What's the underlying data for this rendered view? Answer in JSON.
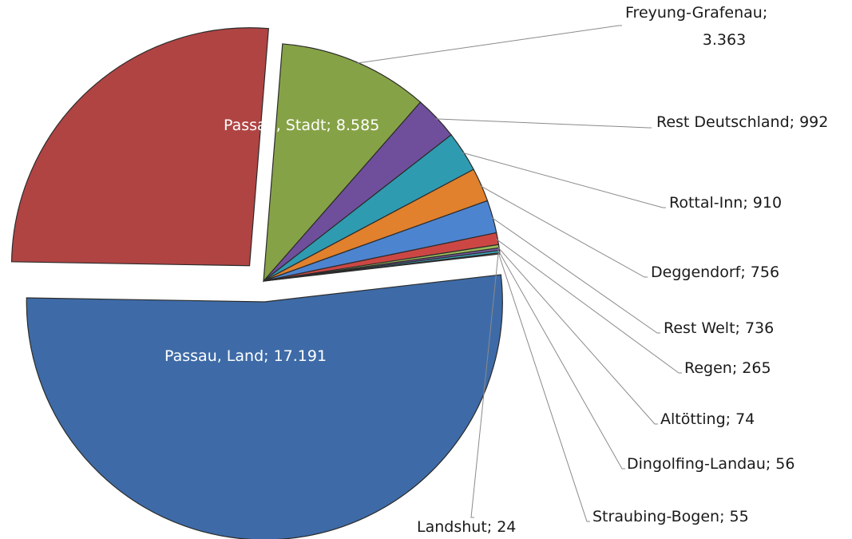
{
  "chart_data": {
    "type": "pie",
    "title": "",
    "slices": [
      {
        "label": "Passau, Land",
        "value": 17191,
        "display": "Passau, Land; 17.191",
        "color": "#3e6ba7",
        "exploded": true,
        "label_inside": true
      },
      {
        "label": "Passau, Stadt",
        "value": 8585,
        "display": "Passau, Stadt; 8.585",
        "color": "#b04443",
        "exploded": true,
        "label_inside": true
      },
      {
        "label": "Freyung-Grafenau",
        "value": 3363,
        "display": [
          "Freyung-Grafenau;",
          "3.363"
        ],
        "color": "#86a246",
        "exploded": false,
        "label_inside": false
      },
      {
        "label": "Rest Deutschland",
        "value": 992,
        "display": "Rest Deutschland; 992",
        "color": "#6f4f9b",
        "exploded": false,
        "label_inside": false
      },
      {
        "label": "Rottal-Inn",
        "value": 910,
        "display": "Rottal-Inn; 910",
        "color": "#2f9bb1",
        "exploded": false,
        "label_inside": false
      },
      {
        "label": "Deggendorf",
        "value": 756,
        "display": "Deggendorf; 756",
        "color": "#e1802d",
        "exploded": false,
        "label_inside": false
      },
      {
        "label": "Rest Welt",
        "value": 736,
        "display": "Rest Welt; 736",
        "color": "#4d84d0",
        "exploded": false,
        "label_inside": false
      },
      {
        "label": "Regen",
        "value": 265,
        "display": "Regen; 265",
        "color": "#cc4744",
        "exploded": false,
        "label_inside": false
      },
      {
        "label": "Altötting",
        "value": 74,
        "display": "Altötting; 74",
        "color": "#9bbb59",
        "exploded": false,
        "label_inside": false
      },
      {
        "label": "Dingolfing-Landau",
        "value": 56,
        "display": "Dingolfing-Landau; 56",
        "color": "#7b5aa6",
        "exploded": false,
        "label_inside": false
      },
      {
        "label": "Straubing-Bogen",
        "value": 55,
        "display": "Straubing-Bogen; 55",
        "color": "#3ca7be",
        "exploded": false,
        "label_inside": false
      },
      {
        "label": "Landshut",
        "value": 24,
        "display": "Landshut; 24",
        "color": "#f79646",
        "exploded": false,
        "label_inside": false
      }
    ],
    "legend": "none",
    "data_labels": "category; value"
  }
}
